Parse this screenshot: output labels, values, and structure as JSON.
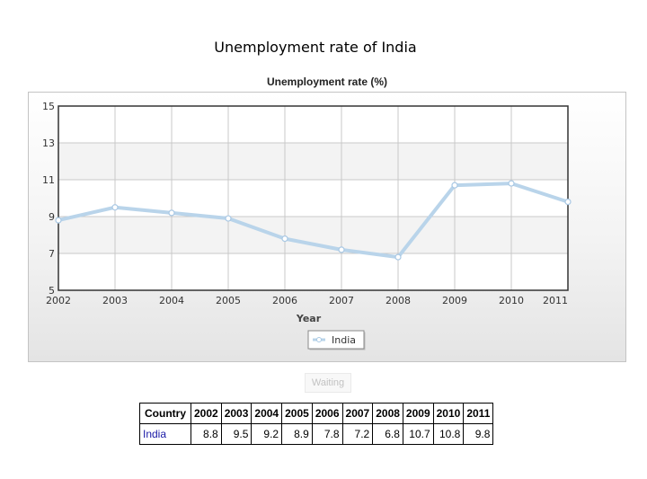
{
  "page": {
    "title": "Unemployment rate of India"
  },
  "chart_data": {
    "type": "line",
    "title": "Unemployment rate (%)",
    "xlabel": "Year",
    "ylabel": "",
    "x": [
      2002,
      2003,
      2004,
      2005,
      2006,
      2007,
      2008,
      2009,
      2010,
      2011
    ],
    "x_ticks": [
      "2002",
      "2003",
      "2004",
      "2005",
      "2006",
      "2007",
      "2008",
      "2009",
      "2010",
      "2011"
    ],
    "y_ticks": [
      "5",
      "7",
      "9",
      "11",
      "13",
      "15"
    ],
    "ylim": [
      5,
      15
    ],
    "grid": true,
    "legend_position": "bottom-center",
    "series": [
      {
        "name": "India",
        "values": [
          8.8,
          9.5,
          9.2,
          8.9,
          7.8,
          7.2,
          6.8,
          10.7,
          10.8,
          9.8
        ]
      }
    ],
    "colors": {
      "line": "#b9d4ea",
      "marker_fill": "#ffffff",
      "marker_stroke": "#a9c8e4"
    }
  },
  "status": {
    "waiting_label": "Waiting"
  },
  "table": {
    "header": [
      "Country",
      "2002",
      "2003",
      "2004",
      "2005",
      "2006",
      "2007",
      "2008",
      "2009",
      "2010",
      "2011"
    ],
    "rows": [
      {
        "country": "India",
        "values": [
          "8.8",
          "9.5",
          "9.2",
          "8.9",
          "7.8",
          "7.2",
          "6.8",
          "10.7",
          "10.8",
          "9.8"
        ]
      }
    ]
  }
}
